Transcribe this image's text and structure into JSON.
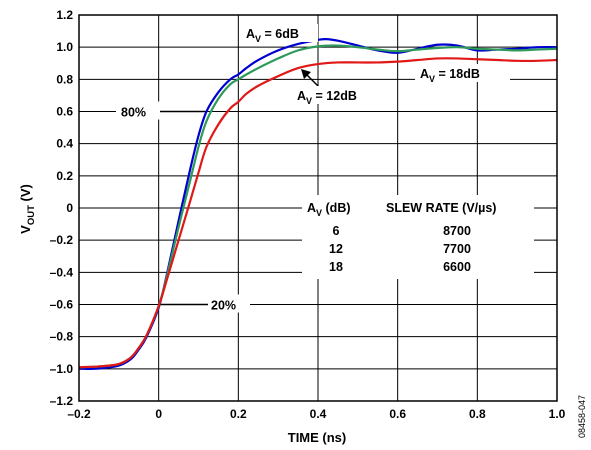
{
  "chart_data": {
    "type": "line",
    "xlabel": "TIME (ns)",
    "ylabel": {
      "main": "V",
      "sub": "OUT",
      "suffix": " (V)"
    },
    "xlim": [
      -0.2,
      1.0
    ],
    "ylim": [
      -1.2,
      1.2
    ],
    "xticks": [
      "–0.2",
      "0",
      "0.2",
      "0.4",
      "0.6",
      "0.8",
      "1.0"
    ],
    "yticks": [
      "–1.2",
      "–1.0",
      "–0.8",
      "–0.6",
      "–0.4",
      "–0.2",
      "0",
      "0.2",
      "0.4",
      "0.6",
      "0.8",
      "1.0",
      "1.2"
    ],
    "grid": true,
    "series": [
      {
        "color": "#0000d0",
        "label": {
          "main": "A",
          "sub": "V",
          "suffix": " = 6dB"
        },
        "x": [
          -0.2,
          -0.15,
          -0.1,
          -0.07,
          -0.05,
          -0.03,
          0.0,
          0.02,
          0.05,
          0.08,
          0.1,
          0.12,
          0.15,
          0.18,
          0.2,
          0.22,
          0.25,
          0.3,
          0.35,
          0.4,
          0.42,
          0.45,
          0.5,
          0.55,
          0.6,
          0.65,
          0.7,
          0.75,
          0.8,
          0.85,
          0.9,
          0.95,
          1.0
        ],
        "y": [
          -1.0,
          -0.998,
          -0.98,
          -0.94,
          -0.88,
          -0.8,
          -0.62,
          -0.42,
          -0.08,
          0.25,
          0.45,
          0.6,
          0.72,
          0.8,
          0.83,
          0.87,
          0.92,
          0.98,
          1.02,
          1.045,
          1.05,
          1.04,
          1.01,
          0.98,
          0.965,
          0.99,
          1.015,
          1.01,
          0.98,
          0.985,
          0.99,
          1.0,
          1.0
        ]
      },
      {
        "color": "#2e9a5a",
        "label": {
          "main": "A",
          "sub": "V",
          "suffix": " = 12dB"
        },
        "x": [
          -0.2,
          -0.15,
          -0.1,
          -0.07,
          -0.05,
          -0.03,
          0.0,
          0.02,
          0.05,
          0.08,
          0.1,
          0.12,
          0.15,
          0.18,
          0.2,
          0.22,
          0.25,
          0.3,
          0.35,
          0.4,
          0.45,
          0.5,
          0.55,
          0.6,
          0.65,
          0.7,
          0.75,
          0.8,
          0.85,
          0.9,
          0.95,
          1.0
        ],
        "y": [
          -0.99,
          -0.985,
          -0.97,
          -0.93,
          -0.87,
          -0.79,
          -0.61,
          -0.43,
          -0.12,
          0.18,
          0.38,
          0.54,
          0.68,
          0.77,
          0.8,
          0.83,
          0.87,
          0.93,
          0.98,
          1.005,
          1.01,
          1.0,
          0.985,
          0.975,
          0.985,
          0.995,
          1.0,
          0.99,
          0.985,
          0.98,
          0.985,
          0.99
        ]
      },
      {
        "color": "#e01818",
        "label": {
          "main": "A",
          "sub": "V",
          "suffix": " = 18dB"
        },
        "x": [
          -0.2,
          -0.15,
          -0.1,
          -0.07,
          -0.05,
          -0.03,
          0.0,
          0.02,
          0.05,
          0.08,
          0.1,
          0.12,
          0.15,
          0.18,
          0.2,
          0.22,
          0.25,
          0.3,
          0.35,
          0.4,
          0.45,
          0.5,
          0.55,
          0.6,
          0.65,
          0.7,
          0.75,
          0.8,
          0.85,
          0.9,
          0.95,
          1.0
        ],
        "y": [
          -0.99,
          -0.985,
          -0.97,
          -0.93,
          -0.87,
          -0.79,
          -0.61,
          -0.45,
          -0.2,
          0.05,
          0.22,
          0.38,
          0.52,
          0.62,
          0.66,
          0.71,
          0.76,
          0.82,
          0.87,
          0.895,
          0.905,
          0.905,
          0.905,
          0.91,
          0.92,
          0.93,
          0.93,
          0.925,
          0.92,
          0.915,
          0.915,
          0.92
        ]
      }
    ],
    "annotations": {
      "pct80": "80%",
      "pct20": "20%"
    },
    "table": {
      "header_gain": {
        "main": "A",
        "sub": "V",
        "suffix": " (dB)"
      },
      "header_slew": "SLEW RATE (V/µs)",
      "rows": [
        {
          "gain": "6",
          "slew": "8700"
        },
        {
          "gain": "12",
          "slew": "7700"
        },
        {
          "gain": "18",
          "slew": "6600"
        }
      ]
    },
    "figure_id": "08458-047"
  }
}
